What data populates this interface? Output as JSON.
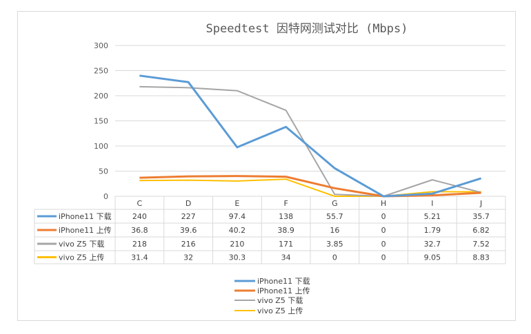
{
  "chart_data": {
    "type": "line",
    "title": "Speedtest 因特网测试对比 (Mbps)",
    "categories": [
      "C",
      "D",
      "E",
      "F",
      "G",
      "H",
      "I",
      "J"
    ],
    "ylim": [
      0,
      300
    ],
    "yticks": [
      "0",
      "50",
      "100",
      "150",
      "200",
      "250",
      "300"
    ],
    "grid": true,
    "legend_placement": "bottom",
    "data_table": true,
    "series": [
      {
        "name": "iPhone11 下载",
        "color": "#5B9BD5",
        "values": [
          240,
          227,
          97.4,
          138,
          55.7,
          0,
          5.21,
          35.7
        ]
      },
      {
        "name": "iPhone11 上传",
        "color": "#ED7D31",
        "values": [
          36.8,
          39.6,
          40.2,
          38.9,
          16,
          0,
          1.79,
          6.82
        ]
      },
      {
        "name": "vivo Z5 下载",
        "color": "#A5A5A5",
        "values": [
          218,
          216,
          210,
          171,
          3.85,
          0,
          32.7,
          7.52
        ]
      },
      {
        "name": "vivo Z5 上传",
        "color": "#FFC000",
        "values": [
          31.4,
          32,
          30.3,
          34,
          0,
          0,
          9.05,
          8.83
        ]
      }
    ]
  }
}
